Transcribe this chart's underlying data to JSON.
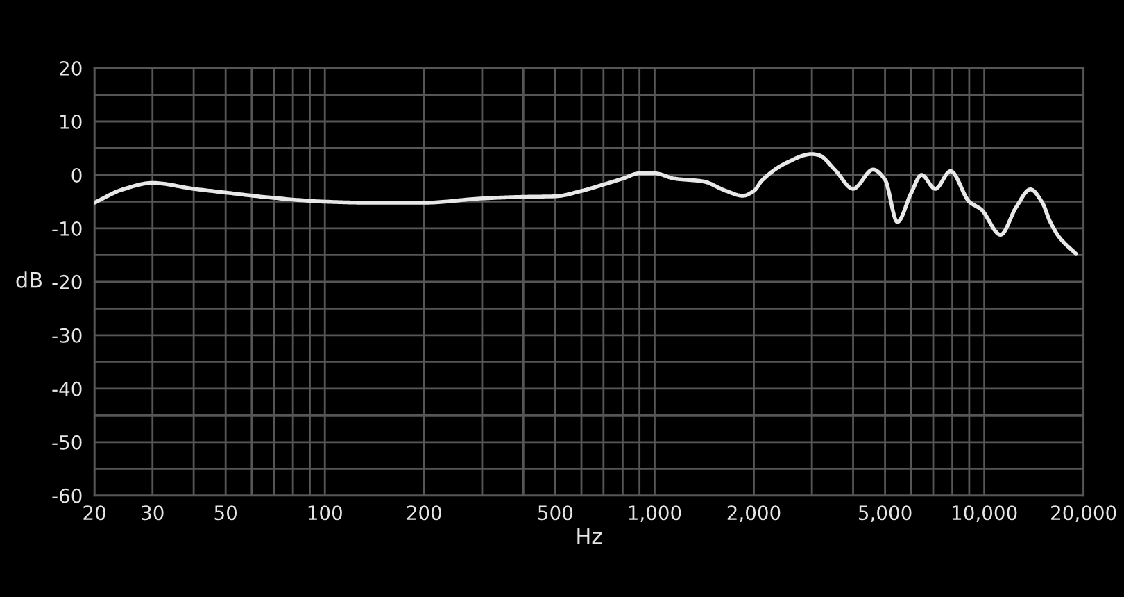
{
  "chart_data": {
    "type": "line",
    "xlabel": "Hz",
    "ylabel": "dB",
    "log": "x",
    "grid": true,
    "line_style": "solid",
    "x": [
      20,
      24.4,
      30,
      40,
      50,
      70,
      100,
      135,
      200,
      300,
      400,
      500,
      600,
      700,
      800,
      900,
      1000,
      1150,
      1400,
      1650,
      1850,
      2000,
      2120,
      2500,
      3000,
      3150,
      3530,
      4000,
      4600,
      5000,
      5450,
      6000,
      6450,
      7100,
      7900,
      9000,
      9800,
      11200,
      12500,
      13800,
      15000,
      15800,
      16900,
      19000
    ],
    "series": [
      {
        "color": "#e8e8e8",
        "values": [
          -5.2,
          -2.7,
          -1.5,
          -2.6,
          -3.3,
          -4.3,
          -5.0,
          -5.2,
          -5.2,
          -4.4,
          -4.1,
          -4.0,
          -3.0,
          -1.8,
          -0.7,
          0.3,
          0.3,
          -0.7,
          -1.2,
          -3.0,
          -3.9,
          -3.0,
          -1.0,
          2.2,
          3.9,
          3.7,
          0.9,
          -2.6,
          1.0,
          -0.9,
          -8.8,
          -3.4,
          0.0,
          -2.6,
          0.7,
          -5.0,
          -6.5,
          -11.2,
          -6.0,
          -2.7,
          -5.2,
          -8.6,
          -11.7,
          -14.8
        ]
      }
    ],
    "xlim": [
      20,
      20000
    ],
    "ylim": [
      -60,
      20
    ],
    "xticks": [
      20,
      30,
      {
        "value": 40,
        "label": null
      },
      50,
      {
        "value": 60,
        "label": null
      },
      {
        "value": 70,
        "label": null
      },
      {
        "value": 80,
        "label": null
      },
      {
        "value": 90,
        "label": null
      },
      100,
      200,
      {
        "value": 300,
        "label": null
      },
      {
        "value": 400,
        "label": null
      },
      500,
      {
        "value": 600,
        "label": null
      },
      {
        "value": 700,
        "label": null
      },
      {
        "value": 800,
        "label": null
      },
      {
        "value": 900,
        "label": null
      },
      {
        "value": 1000,
        "label": "1,000"
      },
      {
        "value": 2000,
        "label": "2,000"
      },
      {
        "value": 3000,
        "label": null
      },
      {
        "value": 4000,
        "label": null
      },
      {
        "value": 5000,
        "label": "5,000"
      },
      {
        "value": 6000,
        "label": null
      },
      {
        "value": 7000,
        "label": null
      },
      {
        "value": 8000,
        "label": null
      },
      {
        "value": 9000,
        "label": null
      },
      {
        "value": 10000,
        "label": "10,000"
      },
      {
        "value": 20000,
        "label": "20,000"
      }
    ],
    "yticks": [
      -60,
      {
        "value": -55,
        "label": null
      },
      -50,
      {
        "value": -45,
        "label": null
      },
      -40,
      {
        "value": -35,
        "label": null
      },
      -30,
      {
        "value": -25,
        "label": null
      },
      -20,
      {
        "value": -15,
        "label": null
      },
      -10,
      {
        "value": -5,
        "label": null
      },
      0,
      {
        "value": 5,
        "label": null
      },
      10,
      {
        "value": 15,
        "label": null
      },
      20
    ]
  }
}
